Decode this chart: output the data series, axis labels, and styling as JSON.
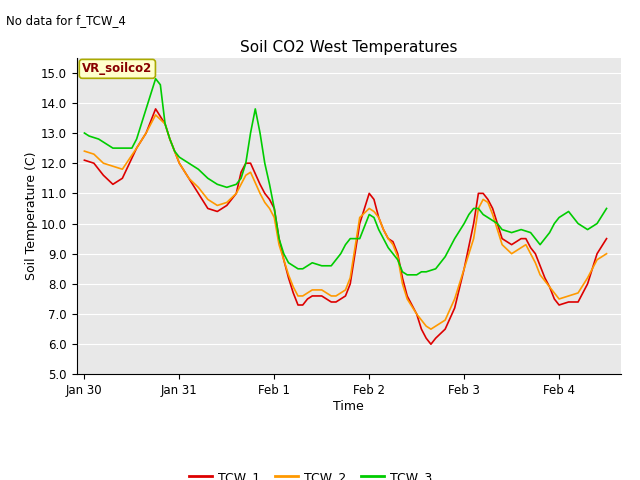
{
  "title": "Soil CO2 West Temperatures",
  "top_left_text": "No data for f_TCW_4",
  "xlabel": "Time",
  "ylabel": "Soil Temperature (C)",
  "ylim": [
    5.0,
    15.5
  ],
  "yticks": [
    5.0,
    6.0,
    7.0,
    8.0,
    9.0,
    10.0,
    11.0,
    12.0,
    13.0,
    14.0,
    15.0
  ],
  "legend_label": "VR_soilco2",
  "legend_entries": [
    "TCW_1",
    "TCW_2",
    "TCW_3"
  ],
  "line_colors": [
    "#dd0000",
    "#ff9900",
    "#00cc00"
  ],
  "background_color": "#e8e8e8",
  "fig_background": "#ffffff",
  "xtick_labels": [
    "Jan 30",
    "Jan 31",
    "Feb 1",
    "Feb 2",
    "Feb 3",
    "Feb 4"
  ],
  "xtick_positions": [
    0.0,
    1.0,
    2.0,
    3.0,
    4.0,
    5.0
  ],
  "xlim": [
    -0.08,
    5.65
  ],
  "TCW_1": [
    [
      0.0,
      12.1
    ],
    [
      0.1,
      12.0
    ],
    [
      0.2,
      11.6
    ],
    [
      0.3,
      11.3
    ],
    [
      0.4,
      11.5
    ],
    [
      0.55,
      12.5
    ],
    [
      0.65,
      13.0
    ],
    [
      0.75,
      13.8
    ],
    [
      0.85,
      13.3
    ],
    [
      0.9,
      12.8
    ],
    [
      1.0,
      12.0
    ],
    [
      1.1,
      11.5
    ],
    [
      1.2,
      11.0
    ],
    [
      1.3,
      10.5
    ],
    [
      1.4,
      10.4
    ],
    [
      1.5,
      10.6
    ],
    [
      1.6,
      11.0
    ],
    [
      1.65,
      11.7
    ],
    [
      1.7,
      12.0
    ],
    [
      1.75,
      12.0
    ],
    [
      1.85,
      11.3
    ],
    [
      1.9,
      11.0
    ],
    [
      1.95,
      10.8
    ],
    [
      2.0,
      10.5
    ],
    [
      2.05,
      9.5
    ],
    [
      2.1,
      8.8
    ],
    [
      2.15,
      8.2
    ],
    [
      2.2,
      7.7
    ],
    [
      2.25,
      7.3
    ],
    [
      2.3,
      7.3
    ],
    [
      2.35,
      7.5
    ],
    [
      2.4,
      7.6
    ],
    [
      2.5,
      7.6
    ],
    [
      2.55,
      7.5
    ],
    [
      2.6,
      7.4
    ],
    [
      2.65,
      7.4
    ],
    [
      2.7,
      7.5
    ],
    [
      2.75,
      7.6
    ],
    [
      2.8,
      8.0
    ],
    [
      2.85,
      9.0
    ],
    [
      2.9,
      10.0
    ],
    [
      3.0,
      11.0
    ],
    [
      3.05,
      10.8
    ],
    [
      3.1,
      10.2
    ],
    [
      3.15,
      9.8
    ],
    [
      3.2,
      9.5
    ],
    [
      3.25,
      9.4
    ],
    [
      3.3,
      9.0
    ],
    [
      3.35,
      8.2
    ],
    [
      3.4,
      7.6
    ],
    [
      3.5,
      7.0
    ],
    [
      3.55,
      6.5
    ],
    [
      3.6,
      6.2
    ],
    [
      3.65,
      6.0
    ],
    [
      3.7,
      6.2
    ],
    [
      3.8,
      6.5
    ],
    [
      3.9,
      7.2
    ],
    [
      4.0,
      8.5
    ],
    [
      4.1,
      10.0
    ],
    [
      4.15,
      11.0
    ],
    [
      4.2,
      11.0
    ],
    [
      4.25,
      10.8
    ],
    [
      4.3,
      10.5
    ],
    [
      4.35,
      10.0
    ],
    [
      4.4,
      9.5
    ],
    [
      4.5,
      9.3
    ],
    [
      4.6,
      9.5
    ],
    [
      4.65,
      9.5
    ],
    [
      4.7,
      9.2
    ],
    [
      4.75,
      9.0
    ],
    [
      4.8,
      8.6
    ],
    [
      4.85,
      8.2
    ],
    [
      4.9,
      7.9
    ],
    [
      4.95,
      7.5
    ],
    [
      5.0,
      7.3
    ],
    [
      5.1,
      7.4
    ],
    [
      5.2,
      7.4
    ],
    [
      5.3,
      8.0
    ],
    [
      5.4,
      9.0
    ],
    [
      5.5,
      9.5
    ]
  ],
  "TCW_2": [
    [
      0.0,
      12.4
    ],
    [
      0.1,
      12.3
    ],
    [
      0.2,
      12.0
    ],
    [
      0.3,
      11.9
    ],
    [
      0.4,
      11.8
    ],
    [
      0.55,
      12.5
    ],
    [
      0.65,
      13.0
    ],
    [
      0.75,
      13.6
    ],
    [
      0.85,
      13.3
    ],
    [
      0.9,
      12.8
    ],
    [
      1.0,
      12.0
    ],
    [
      1.1,
      11.5
    ],
    [
      1.2,
      11.2
    ],
    [
      1.3,
      10.8
    ],
    [
      1.4,
      10.6
    ],
    [
      1.5,
      10.7
    ],
    [
      1.6,
      11.0
    ],
    [
      1.65,
      11.3
    ],
    [
      1.7,
      11.6
    ],
    [
      1.75,
      11.7
    ],
    [
      1.85,
      11.0
    ],
    [
      1.9,
      10.7
    ],
    [
      1.95,
      10.5
    ],
    [
      2.0,
      10.2
    ],
    [
      2.05,
      9.3
    ],
    [
      2.1,
      8.8
    ],
    [
      2.15,
      8.3
    ],
    [
      2.2,
      7.9
    ],
    [
      2.25,
      7.6
    ],
    [
      2.3,
      7.6
    ],
    [
      2.35,
      7.7
    ],
    [
      2.4,
      7.8
    ],
    [
      2.5,
      7.8
    ],
    [
      2.55,
      7.7
    ],
    [
      2.6,
      7.6
    ],
    [
      2.65,
      7.6
    ],
    [
      2.7,
      7.7
    ],
    [
      2.75,
      7.8
    ],
    [
      2.8,
      8.2
    ],
    [
      2.85,
      9.2
    ],
    [
      2.9,
      10.2
    ],
    [
      3.0,
      10.5
    ],
    [
      3.05,
      10.4
    ],
    [
      3.1,
      10.2
    ],
    [
      3.15,
      9.8
    ],
    [
      3.2,
      9.5
    ],
    [
      3.25,
      9.3
    ],
    [
      3.3,
      8.9
    ],
    [
      3.35,
      8.0
    ],
    [
      3.4,
      7.5
    ],
    [
      3.5,
      7.0
    ],
    [
      3.55,
      6.8
    ],
    [
      3.6,
      6.6
    ],
    [
      3.65,
      6.5
    ],
    [
      3.7,
      6.6
    ],
    [
      3.8,
      6.8
    ],
    [
      3.9,
      7.5
    ],
    [
      4.0,
      8.5
    ],
    [
      4.1,
      9.5
    ],
    [
      4.15,
      10.5
    ],
    [
      4.2,
      10.8
    ],
    [
      4.25,
      10.7
    ],
    [
      4.3,
      10.3
    ],
    [
      4.35,
      9.8
    ],
    [
      4.4,
      9.3
    ],
    [
      4.5,
      9.0
    ],
    [
      4.6,
      9.2
    ],
    [
      4.65,
      9.3
    ],
    [
      4.7,
      9.0
    ],
    [
      4.75,
      8.7
    ],
    [
      4.8,
      8.3
    ],
    [
      4.85,
      8.1
    ],
    [
      4.9,
      7.9
    ],
    [
      4.95,
      7.7
    ],
    [
      5.0,
      7.5
    ],
    [
      5.1,
      7.6
    ],
    [
      5.2,
      7.7
    ],
    [
      5.3,
      8.2
    ],
    [
      5.4,
      8.8
    ],
    [
      5.5,
      9.0
    ]
  ],
  "TCW_3": [
    [
      0.0,
      13.0
    ],
    [
      0.05,
      12.9
    ],
    [
      0.1,
      12.85
    ],
    [
      0.15,
      12.8
    ],
    [
      0.2,
      12.7
    ],
    [
      0.25,
      12.6
    ],
    [
      0.3,
      12.5
    ],
    [
      0.35,
      12.5
    ],
    [
      0.4,
      12.5
    ],
    [
      0.5,
      12.5
    ],
    [
      0.55,
      12.8
    ],
    [
      0.65,
      13.8
    ],
    [
      0.75,
      14.8
    ],
    [
      0.8,
      14.6
    ],
    [
      0.85,
      13.3
    ],
    [
      0.9,
      12.8
    ],
    [
      0.95,
      12.4
    ],
    [
      1.0,
      12.2
    ],
    [
      1.1,
      12.0
    ],
    [
      1.2,
      11.8
    ],
    [
      1.3,
      11.5
    ],
    [
      1.4,
      11.3
    ],
    [
      1.5,
      11.2
    ],
    [
      1.6,
      11.3
    ],
    [
      1.65,
      11.5
    ],
    [
      1.7,
      12.0
    ],
    [
      1.75,
      13.0
    ],
    [
      1.8,
      13.8
    ],
    [
      1.85,
      13.0
    ],
    [
      1.9,
      12.0
    ],
    [
      1.95,
      11.3
    ],
    [
      2.0,
      10.5
    ],
    [
      2.05,
      9.5
    ],
    [
      2.1,
      9.0
    ],
    [
      2.15,
      8.7
    ],
    [
      2.2,
      8.6
    ],
    [
      2.25,
      8.5
    ],
    [
      2.3,
      8.5
    ],
    [
      2.35,
      8.6
    ],
    [
      2.4,
      8.7
    ],
    [
      2.5,
      8.6
    ],
    [
      2.55,
      8.6
    ],
    [
      2.6,
      8.6
    ],
    [
      2.65,
      8.8
    ],
    [
      2.7,
      9.0
    ],
    [
      2.75,
      9.3
    ],
    [
      2.8,
      9.5
    ],
    [
      2.9,
      9.5
    ],
    [
      3.0,
      10.3
    ],
    [
      3.05,
      10.2
    ],
    [
      3.1,
      9.8
    ],
    [
      3.15,
      9.5
    ],
    [
      3.2,
      9.2
    ],
    [
      3.25,
      9.0
    ],
    [
      3.3,
      8.8
    ],
    [
      3.35,
      8.4
    ],
    [
      3.4,
      8.3
    ],
    [
      3.5,
      8.3
    ],
    [
      3.55,
      8.4
    ],
    [
      3.6,
      8.4
    ],
    [
      3.7,
      8.5
    ],
    [
      3.8,
      8.9
    ],
    [
      3.9,
      9.5
    ],
    [
      4.0,
      10.0
    ],
    [
      4.05,
      10.3
    ],
    [
      4.1,
      10.5
    ],
    [
      4.15,
      10.5
    ],
    [
      4.2,
      10.3
    ],
    [
      4.25,
      10.2
    ],
    [
      4.3,
      10.1
    ],
    [
      4.35,
      10.0
    ],
    [
      4.4,
      9.8
    ],
    [
      4.5,
      9.7
    ],
    [
      4.6,
      9.8
    ],
    [
      4.7,
      9.7
    ],
    [
      4.75,
      9.5
    ],
    [
      4.8,
      9.3
    ],
    [
      4.85,
      9.5
    ],
    [
      4.9,
      9.7
    ],
    [
      4.95,
      10.0
    ],
    [
      5.0,
      10.2
    ],
    [
      5.1,
      10.4
    ],
    [
      5.2,
      10.0
    ],
    [
      5.3,
      9.8
    ],
    [
      5.4,
      10.0
    ],
    [
      5.5,
      10.5
    ]
  ]
}
